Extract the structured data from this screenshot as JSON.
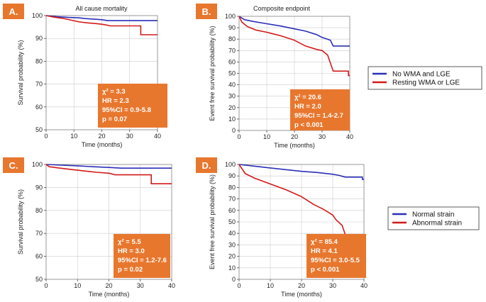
{
  "colors": {
    "blue": "#2b2fb8",
    "red": "#d21a1a",
    "orange": "#e8772e",
    "grid": "#cccccc"
  },
  "legends": [
    {
      "panels": "AB",
      "entries": [
        {
          "label": "No WMA and LGE",
          "color": "#2b2fb8"
        },
        {
          "label": "Resting WMA or LGE",
          "color": "#d21a1a"
        }
      ]
    },
    {
      "panels": "CD",
      "entries": [
        {
          "label": "Normal strain",
          "color": "#2b2fb8"
        },
        {
          "label": "Abnormal strain",
          "color": "#d21a1a"
        }
      ]
    }
  ],
  "chart_data": [
    {
      "id": "A",
      "badge": "A.",
      "type": "line",
      "title": "All cause mortality",
      "xlabel": "Time (months)",
      "ylabel": "Survival probability (%)",
      "xlim": [
        0,
        40
      ],
      "ylim": [
        50,
        100
      ],
      "xticks": [
        0,
        10,
        20,
        30,
        40
      ],
      "yticks": [
        50,
        60,
        70,
        80,
        90,
        100
      ],
      "stats": [
        "χ² = 3.3",
        "HR = 2.3",
        "95%CI = 0.9-5.8",
        "p = 0.07"
      ],
      "series": [
        {
          "name": "No WMA and LGE",
          "color": "#2b2fb8",
          "x": [
            0,
            4,
            8,
            12,
            14,
            18,
            20,
            22,
            40
          ],
          "y": [
            100,
            99.5,
            99.2,
            99,
            98.7,
            98.4,
            98.2,
            97.8,
            97.8
          ]
        },
        {
          "name": "Resting WMA or LGE",
          "color": "#d21a1a",
          "x": [
            0,
            3,
            6,
            9,
            12,
            15,
            18,
            20,
            22,
            23,
            34,
            34,
            40
          ],
          "y": [
            100,
            99.3,
            98.8,
            98,
            97.2,
            96.8,
            96.5,
            96.2,
            95.8,
            95.5,
            95.5,
            91.6,
            91.6
          ]
        }
      ]
    },
    {
      "id": "B",
      "badge": "B.",
      "type": "line",
      "title": "Composite endpoint",
      "xlabel": "Time (months)",
      "ylabel": "Event free survival probability (%)",
      "xlim": [
        0,
        40
      ],
      "ylim": [
        0,
        100
      ],
      "xticks": [
        0,
        10,
        20,
        30,
        40
      ],
      "yticks": [
        0,
        10,
        20,
        30,
        40,
        50,
        60,
        70,
        80,
        90,
        100
      ],
      "stats": [
        "χ² = 20.6",
        "HR = 2.0",
        "95%CI = 1.4-2.7",
        "p < 0.001"
      ],
      "series": [
        {
          "name": "No WMA and LGE",
          "color": "#2b2fb8",
          "x": [
            0,
            2,
            5,
            10,
            15,
            20,
            24,
            28,
            30,
            33,
            34,
            37,
            40
          ],
          "y": [
            100,
            97,
            95.5,
            93.5,
            91.5,
            89,
            87,
            84,
            81.5,
            79,
            74,
            74,
            74
          ]
        },
        {
          "name": "Resting WMA or LGE",
          "color": "#d21a1a",
          "x": [
            0,
            1,
            3,
            6,
            10,
            15,
            20,
            24,
            28,
            30,
            32,
            34,
            39.5,
            39.5,
            40
          ],
          "y": [
            100,
            95,
            91,
            88,
            86,
            83,
            79,
            74,
            71,
            70,
            66,
            52,
            52,
            48,
            48
          ]
        }
      ]
    },
    {
      "id": "C",
      "badge": "C.",
      "type": "line",
      "title": "",
      "xlabel": "Time (months)",
      "ylabel": "Survival probability (%)",
      "xlim": [
        0,
        40
      ],
      "ylim": [
        50,
        100
      ],
      "xticks": [
        0,
        10,
        20,
        30,
        40
      ],
      "yticks": [
        50,
        60,
        70,
        80,
        90,
        100
      ],
      "stats": [
        "χ² = 5.5",
        "HR = 3.0",
        "95%CI = 1.2-7.6",
        "p = 0.02"
      ],
      "series": [
        {
          "name": "Normal strain",
          "color": "#2b2fb8",
          "x": [
            0,
            5,
            10,
            15,
            20,
            24,
            40
          ],
          "y": [
            100,
            99.7,
            99.4,
            99,
            98.7,
            98.4,
            98.4
          ]
        },
        {
          "name": "Abnormal strain",
          "color": "#d21a1a",
          "x": [
            0,
            1,
            4,
            8,
            12,
            16,
            20,
            22,
            33.5,
            33.5,
            40
          ],
          "y": [
            100,
            99,
            98.5,
            97.8,
            97.2,
            96.6,
            96.2,
            95.5,
            95.5,
            91.6,
            91.6
          ]
        }
      ]
    },
    {
      "id": "D",
      "badge": "D.",
      "type": "line",
      "title": "",
      "xlabel": "Time (months)",
      "ylabel": "Event free survival probability (%)",
      "xlim": [
        0,
        40
      ],
      "ylim": [
        0,
        100
      ],
      "xticks": [
        0,
        10,
        20,
        30,
        40
      ],
      "yticks": [
        0,
        10,
        20,
        30,
        40,
        50,
        60,
        70,
        80,
        90,
        100
      ],
      "stats": [
        "χ² = 85.4",
        "HR = 4.1",
        "95%CI = 3.0-5.5",
        "p < 0.001"
      ],
      "series": [
        {
          "name": "Normal strain",
          "color": "#2b2fb8",
          "x": [
            0,
            5,
            10,
            15,
            20,
            25,
            30,
            32,
            34,
            39.5,
            39.5,
            40
          ],
          "y": [
            100,
            98.5,
            97,
            95.5,
            94,
            93,
            91.5,
            90.5,
            89,
            89,
            87,
            87
          ]
        },
        {
          "name": "Abnormal strain",
          "color": "#d21a1a",
          "x": [
            0,
            2,
            5,
            10,
            15,
            20,
            24,
            27,
            30,
            31,
            33,
            34,
            35,
            40
          ],
          "y": [
            100,
            92,
            88,
            83,
            78,
            72,
            65,
            61,
            56,
            52,
            47,
            39,
            39,
            39
          ]
        }
      ]
    }
  ]
}
